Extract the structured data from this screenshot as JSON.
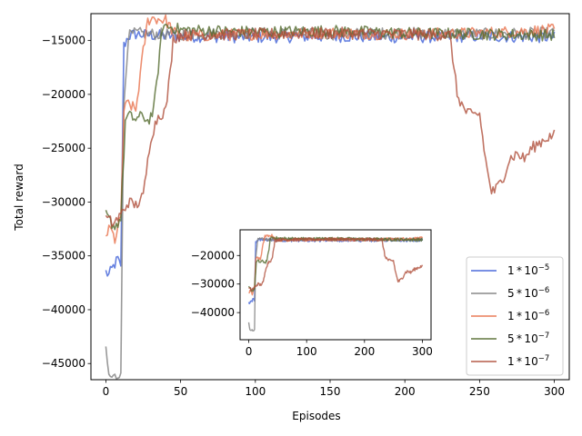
{
  "chart_data": [
    {
      "type": "line",
      "xlabel": "Episodes",
      "ylabel": "Total reward",
      "xlim": [
        -10,
        310
      ],
      "ylim": [
        -46500,
        -12500
      ],
      "x_ticks": [
        0,
        50,
        100,
        150,
        200,
        250,
        300
      ],
      "y_ticks": [
        -45000,
        -40000,
        -35000,
        -30000,
        -25000,
        -20000,
        -15000
      ],
      "x_tick_labels": [
        "0",
        "50",
        "100",
        "150",
        "200",
        "250",
        "300"
      ],
      "y_tick_labels": [
        "−45000",
        "−40000",
        "−35000",
        "−30000",
        "−25000",
        "−20000",
        "−15000"
      ],
      "grid": false,
      "legend_position": "lower-right",
      "series": [
        {
          "name": "1*10^-5",
          "legend_base": "1 * 10",
          "legend_exp": "−5",
          "color": "#4062d8",
          "x": [
            0,
            2,
            5,
            8,
            10,
            12,
            15,
            20,
            30,
            50,
            100,
            150,
            200,
            250,
            300
          ],
          "y": [
            -36500,
            -36800,
            -36000,
            -35300,
            -36200,
            -15500,
            -14600,
            -14400,
            -14500,
            -14600,
            -14700,
            -14600,
            -14700,
            -14600,
            -14700
          ]
        },
        {
          "name": "5*10^-6",
          "legend_base": "5 * 10",
          "legend_exp": "−6",
          "color": "#808080",
          "x": [
            0,
            2,
            5,
            8,
            10,
            12,
            15,
            20,
            30,
            50,
            100,
            150,
            200,
            250,
            300
          ],
          "y": [
            -43600,
            -46200,
            -46300,
            -46100,
            -45500,
            -21000,
            -14600,
            -14300,
            -14400,
            -14400,
            -14300,
            -14400,
            -14300,
            -14400,
            -14300
          ]
        },
        {
          "name": "1*10^-6",
          "legend_base": "1 * 10",
          "legend_exp": "−6",
          "color": "#e8734d",
          "x": [
            0,
            3,
            6,
            10,
            12,
            15,
            20,
            25,
            28,
            30,
            35,
            40,
            45,
            50,
            100,
            150,
            200,
            250,
            300
          ],
          "y": [
            -33000,
            -32500,
            -33500,
            -31500,
            -21500,
            -20800,
            -21500,
            -16000,
            -13200,
            -12900,
            -13000,
            -13100,
            -14200,
            -14600,
            -14400,
            -14300,
            -14400,
            -14300,
            -14000
          ]
        },
        {
          "name": "5*10^-7",
          "legend_base": "5 * 10",
          "legend_exp": "−7",
          "color": "#556b2f",
          "x": [
            0,
            3,
            6,
            10,
            13,
            15,
            20,
            25,
            28,
            32,
            38,
            45,
            50,
            100,
            150,
            200,
            250,
            300
          ],
          "y": [
            -31200,
            -31800,
            -32300,
            -31500,
            -22500,
            -22000,
            -22300,
            -22000,
            -22500,
            -21500,
            -13600,
            -13800,
            -14000,
            -14200,
            -14100,
            -14300,
            -14400,
            -14500
          ]
        },
        {
          "name": "1*10^-7",
          "legend_base": "1 * 10",
          "legend_exp": "−7",
          "color": "#b0503c",
          "x": [
            0,
            5,
            10,
            15,
            20,
            25,
            30,
            35,
            40,
            43,
            45,
            50,
            100,
            150,
            200,
            230,
            232,
            235,
            240,
            245,
            250,
            252,
            255,
            258,
            260,
            265,
            270,
            275,
            280,
            285,
            290,
            295,
            300
          ],
          "y": [
            -31500,
            -32000,
            -31200,
            -30000,
            -30300,
            -29500,
            -24000,
            -22000,
            -21500,
            -18000,
            -14800,
            -14500,
            -14400,
            -14300,
            -14400,
            -14500,
            -16500,
            -20000,
            -21500,
            -22000,
            -21800,
            -24000,
            -27000,
            -29000,
            -29000,
            -28000,
            -26000,
            -25500,
            -26000,
            -25000,
            -24500,
            -24000,
            -23800
          ]
        }
      ]
    },
    {
      "type": "line",
      "role": "inset",
      "xlabel": "",
      "ylabel": "",
      "xlim": [
        -15,
        315
      ],
      "ylim": [
        -49500,
        -11000
      ],
      "x_ticks": [
        0,
        100,
        200,
        300
      ],
      "y_ticks": [
        -40000,
        -30000,
        -20000
      ],
      "x_tick_labels": [
        "0",
        "100",
        "200",
        "300"
      ],
      "y_tick_labels": [
        "−40000",
        "−30000",
        "−20000"
      ],
      "grid": false,
      "series_source": "same as main chart"
    }
  ]
}
